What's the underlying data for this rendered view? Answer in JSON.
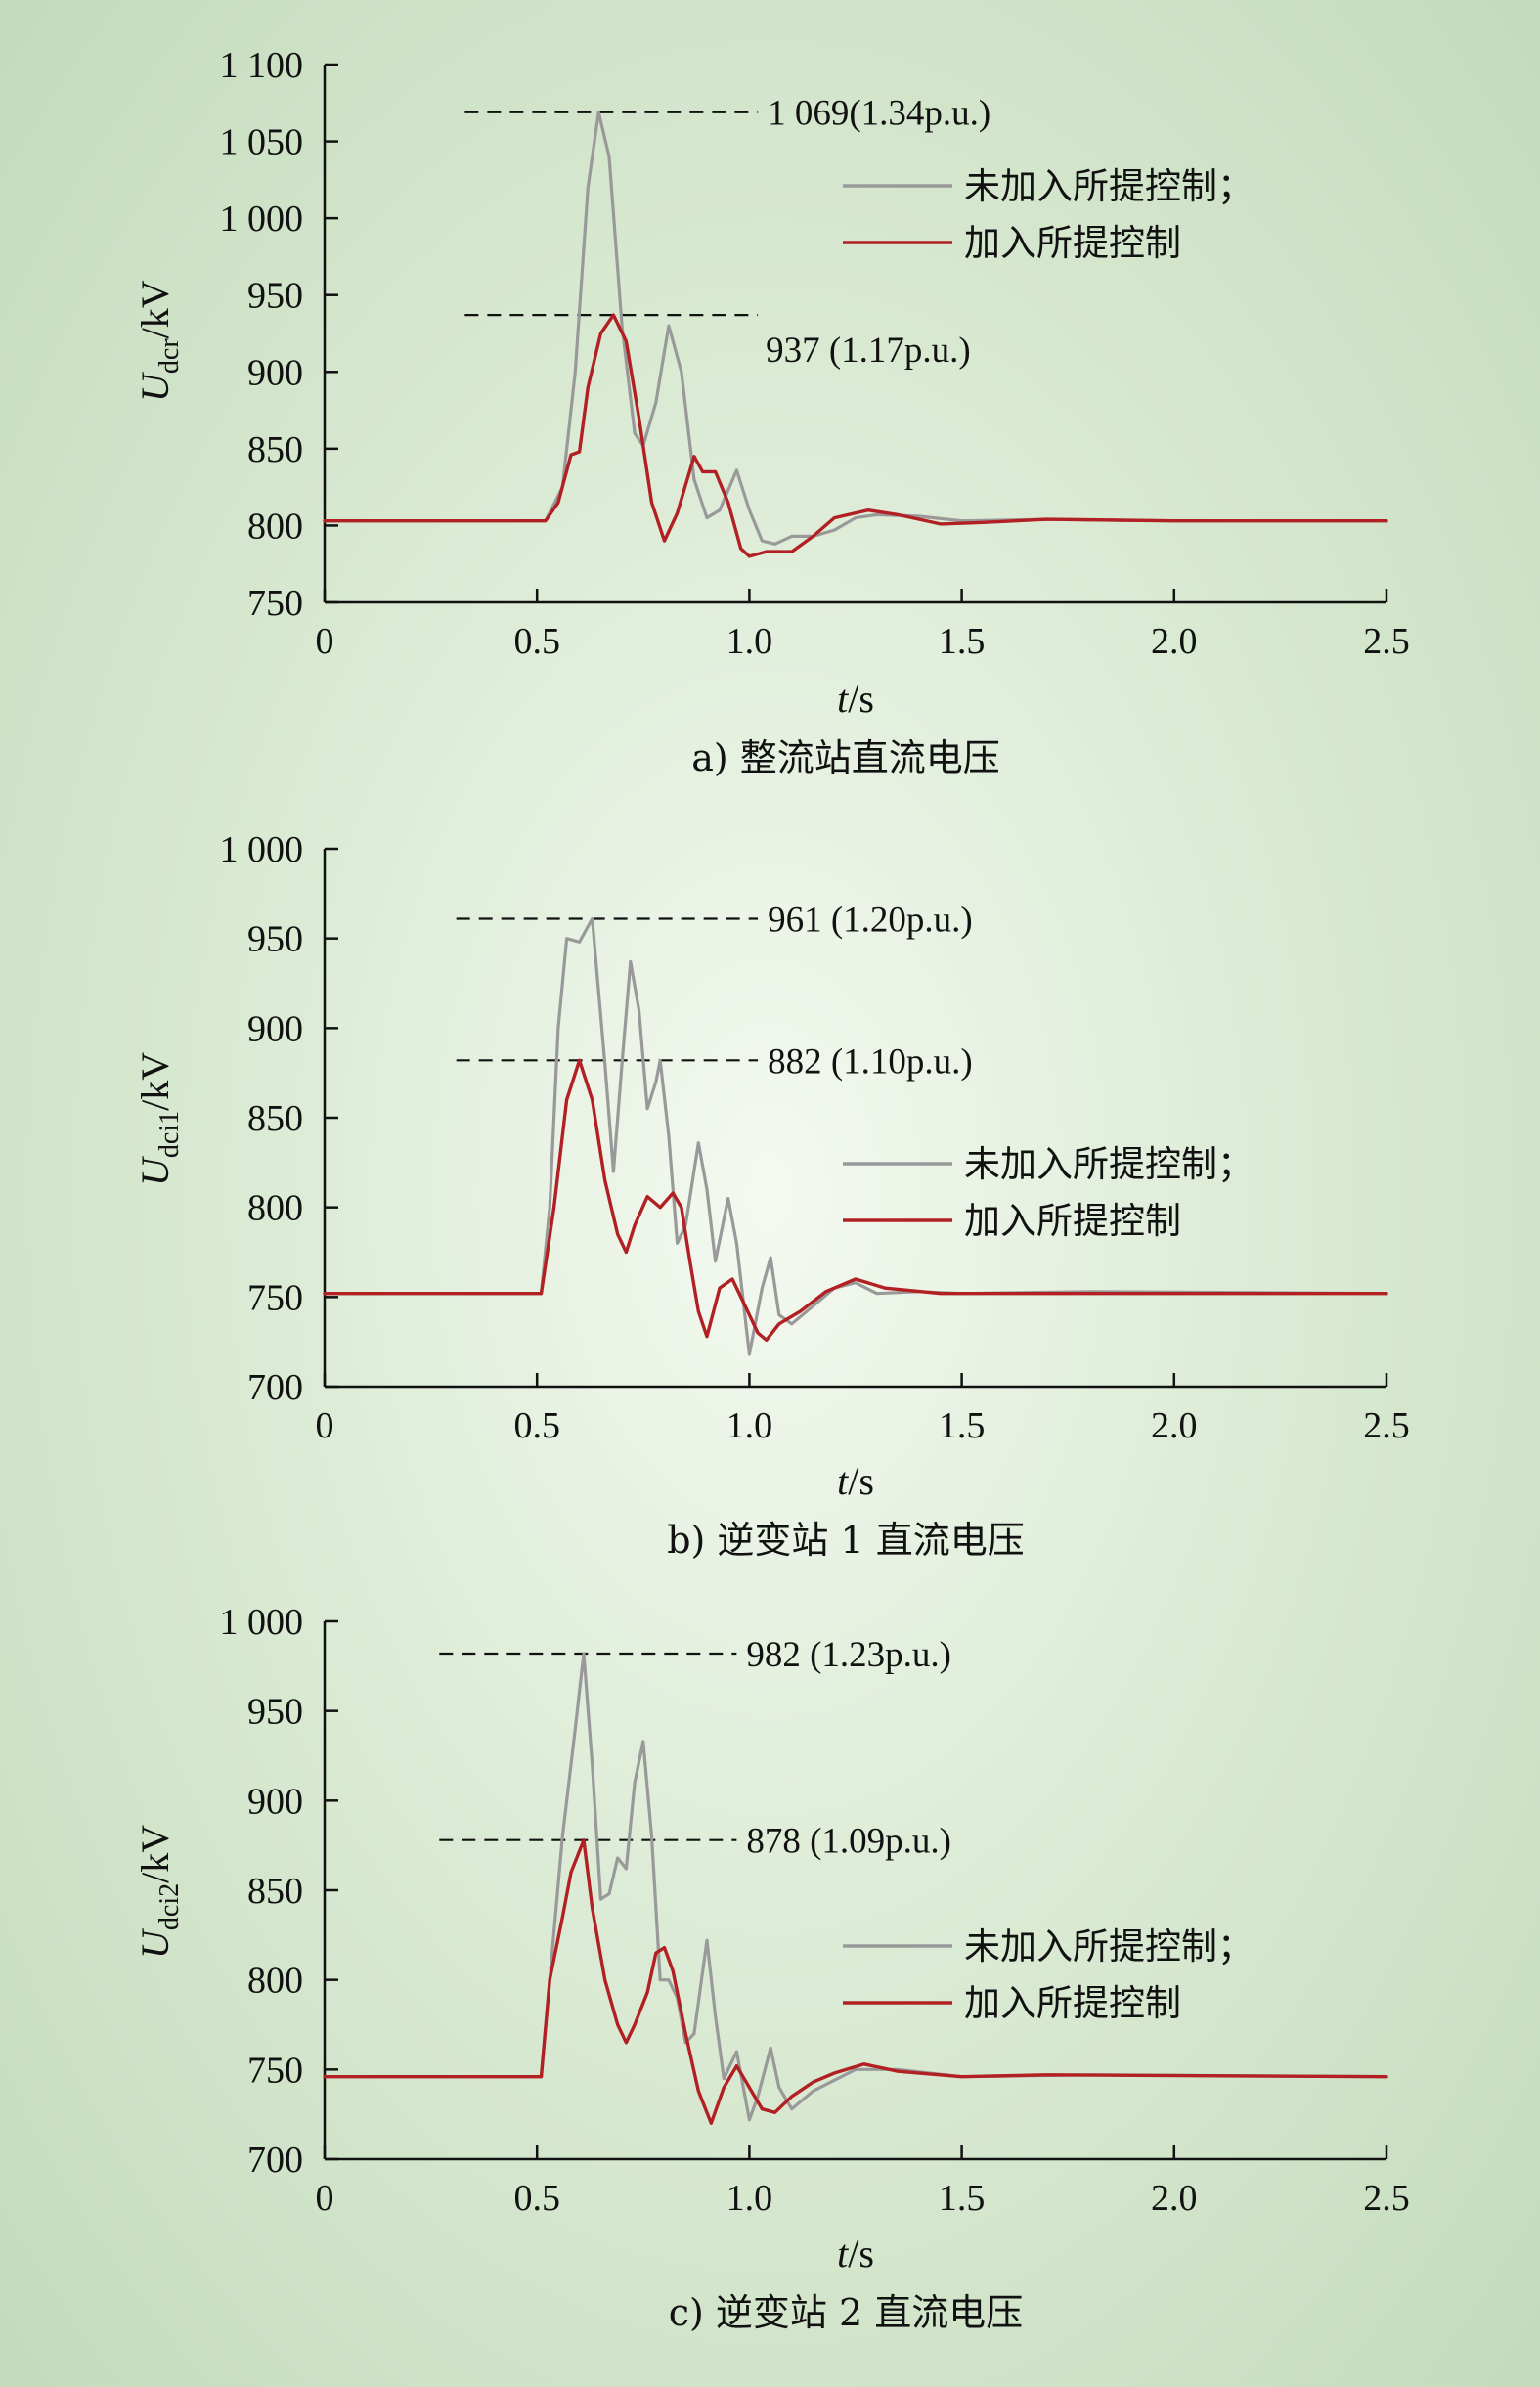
{
  "chart_data": [
    {
      "type": "line",
      "caption": "a) 整流站直流电压",
      "ylabel_main": "U",
      "ylabel_sub": "dcr",
      "ylabel_unit": "/kV",
      "xlabel_main": "t",
      "xlabel_unit": "/s",
      "xlim": [
        0,
        2.5
      ],
      "ylim": [
        750,
        1100
      ],
      "xticks": [
        0,
        0.5,
        1.0,
        1.5,
        2.0,
        2.5
      ],
      "xtick_labels": [
        "0",
        "0.5",
        "1.0",
        "1.5",
        "2.0",
        "2.5"
      ],
      "yticks": [
        750,
        800,
        850,
        900,
        950,
        1000,
        1050,
        1100
      ],
      "ytick_labels": [
        "750",
        "800",
        "850",
        "900",
        "950",
        "1 000",
        "1 050",
        "1 100"
      ],
      "annotations": [
        {
          "text": "1 069(1.34p.u.)",
          "y": 1069,
          "x_start": 0.33,
          "x_end": 1.02,
          "label_pos": "right"
        },
        {
          "text": "937 (1.17p.u.)",
          "y": 937,
          "x_start": 0.33,
          "x_end": 1.02,
          "label_pos": "below-right"
        }
      ],
      "legend": [
        "未加入所提控制；",
        "加入所提控制"
      ],
      "series": [
        {
          "name": "未加入所提控制；",
          "color": "#999999",
          "points": [
            [
              0,
              803
            ],
            [
              0.52,
              803
            ],
            [
              0.56,
              825
            ],
            [
              0.59,
              900
            ],
            [
              0.62,
              1020
            ],
            [
              0.645,
              1069
            ],
            [
              0.67,
              1040
            ],
            [
              0.7,
              930
            ],
            [
              0.73,
              860
            ],
            [
              0.75,
              852
            ],
            [
              0.78,
              880
            ],
            [
              0.81,
              930
            ],
            [
              0.84,
              900
            ],
            [
              0.87,
              830
            ],
            [
              0.9,
              805
            ],
            [
              0.93,
              810
            ],
            [
              0.97,
              836
            ],
            [
              1.0,
              810
            ],
            [
              1.03,
              790
            ],
            [
              1.06,
              788
            ],
            [
              1.1,
              793
            ],
            [
              1.15,
              793
            ],
            [
              1.2,
              797
            ],
            [
              1.25,
              805
            ],
            [
              1.3,
              807
            ],
            [
              1.4,
              806
            ],
            [
              1.5,
              803
            ],
            [
              1.7,
              804
            ],
            [
              2.0,
              803
            ],
            [
              2.5,
              803
            ]
          ]
        },
        {
          "name": "加入所提控制",
          "color": "#b22024",
          "points": [
            [
              0,
              803
            ],
            [
              0.52,
              803
            ],
            [
              0.55,
              815
            ],
            [
              0.58,
              846
            ],
            [
              0.6,
              848
            ],
            [
              0.62,
              890
            ],
            [
              0.65,
              925
            ],
            [
              0.68,
              937
            ],
            [
              0.71,
              920
            ],
            [
              0.74,
              870
            ],
            [
              0.77,
              815
            ],
            [
              0.8,
              790
            ],
            [
              0.83,
              808
            ],
            [
              0.87,
              845
            ],
            [
              0.89,
              835
            ],
            [
              0.92,
              835
            ],
            [
              0.95,
              815
            ],
            [
              0.98,
              785
            ],
            [
              1.0,
              780
            ],
            [
              1.04,
              783
            ],
            [
              1.1,
              783
            ],
            [
              1.15,
              793
            ],
            [
              1.2,
              805
            ],
            [
              1.28,
              810
            ],
            [
              1.35,
              807
            ],
            [
              1.45,
              801
            ],
            [
              1.55,
              802
            ],
            [
              1.7,
              804
            ],
            [
              2.0,
              803
            ],
            [
              2.5,
              803
            ]
          ]
        }
      ]
    },
    {
      "type": "line",
      "caption": "b) 逆变站 1 直流电压",
      "ylabel_main": "U",
      "ylabel_sub": "dci1",
      "ylabel_unit": "/kV",
      "xlabel_main": "t",
      "xlabel_unit": "/s",
      "xlim": [
        0,
        2.5
      ],
      "ylim": [
        700,
        1000
      ],
      "xticks": [
        0,
        0.5,
        1.0,
        1.5,
        2.0,
        2.5
      ],
      "xtick_labels": [
        "0",
        "0.5",
        "1.0",
        "1.5",
        "2.0",
        "2.5"
      ],
      "yticks": [
        700,
        750,
        800,
        850,
        900,
        950,
        1000
      ],
      "ytick_labels": [
        "700",
        "750",
        "800",
        "850",
        "900",
        "950",
        "1 000"
      ],
      "annotations": [
        {
          "text": "961 (1.20p.u.)",
          "y": 961,
          "x_start": 0.31,
          "x_end": 1.02,
          "label_pos": "right"
        },
        {
          "text": "882 (1.10p.u.)",
          "y": 882,
          "x_start": 0.31,
          "x_end": 1.02,
          "label_pos": "right"
        }
      ],
      "legend": [
        "未加入所提控制；",
        "加入所提控制"
      ],
      "series": [
        {
          "name": "未加入所提控制；",
          "color": "#999999",
          "points": [
            [
              0,
              752
            ],
            [
              0.51,
              752
            ],
            [
              0.53,
              800
            ],
            [
              0.55,
              900
            ],
            [
              0.57,
              950
            ],
            [
              0.6,
              948
            ],
            [
              0.63,
              961
            ],
            [
              0.66,
              880
            ],
            [
              0.68,
              820
            ],
            [
              0.7,
              880
            ],
            [
              0.72,
              937
            ],
            [
              0.74,
              910
            ],
            [
              0.76,
              855
            ],
            [
              0.78,
              870
            ],
            [
              0.79,
              882
            ],
            [
              0.81,
              840
            ],
            [
              0.83,
              780
            ],
            [
              0.85,
              790
            ],
            [
              0.88,
              836
            ],
            [
              0.9,
              810
            ],
            [
              0.92,
              770
            ],
            [
              0.95,
              805
            ],
            [
              0.97,
              780
            ],
            [
              1.0,
              718
            ],
            [
              1.03,
              755
            ],
            [
              1.05,
              772
            ],
            [
              1.07,
              740
            ],
            [
              1.1,
              735
            ],
            [
              1.15,
              745
            ],
            [
              1.2,
              755
            ],
            [
              1.25,
              758
            ],
            [
              1.3,
              752
            ],
            [
              1.4,
              753
            ],
            [
              1.5,
              752
            ],
            [
              1.8,
              753
            ],
            [
              2.5,
              752
            ]
          ]
        },
        {
          "name": "加入所提控制",
          "color": "#b22024",
          "points": [
            [
              0,
              752
            ],
            [
              0.51,
              752
            ],
            [
              0.54,
              800
            ],
            [
              0.57,
              860
            ],
            [
              0.6,
              882
            ],
            [
              0.63,
              860
            ],
            [
              0.66,
              815
            ],
            [
              0.69,
              785
            ],
            [
              0.71,
              775
            ],
            [
              0.73,
              790
            ],
            [
              0.76,
              806
            ],
            [
              0.79,
              800
            ],
            [
              0.82,
              808
            ],
            [
              0.84,
              800
            ],
            [
              0.86,
              770
            ],
            [
              0.88,
              742
            ],
            [
              0.9,
              728
            ],
            [
              0.93,
              755
            ],
            [
              0.96,
              760
            ],
            [
              0.99,
              745
            ],
            [
              1.02,
              730
            ],
            [
              1.04,
              726
            ],
            [
              1.07,
              735
            ],
            [
              1.12,
              742
            ],
            [
              1.18,
              753
            ],
            [
              1.25,
              760
            ],
            [
              1.32,
              755
            ],
            [
              1.45,
              752
            ],
            [
              1.6,
              752
            ],
            [
              1.8,
              752
            ],
            [
              2.5,
              752
            ]
          ]
        }
      ]
    },
    {
      "type": "line",
      "caption": "c) 逆变站 2 直流电压",
      "ylabel_main": "U",
      "ylabel_sub": "dci2",
      "ylabel_unit": "/kV",
      "xlabel_main": "t",
      "xlabel_unit": "/s",
      "xlim": [
        0,
        2.5
      ],
      "ylim": [
        700,
        1000
      ],
      "xticks": [
        0,
        0.5,
        1.0,
        1.5,
        2.0,
        2.5
      ],
      "xtick_labels": [
        "0",
        "0.5",
        "1.0",
        "1.5",
        "2.0",
        "2.5"
      ],
      "yticks": [
        700,
        750,
        800,
        850,
        900,
        950,
        1000
      ],
      "ytick_labels": [
        "700",
        "750",
        "800",
        "850",
        "900",
        "950",
        "1 000"
      ],
      "annotations": [
        {
          "text": "982 (1.23p.u.)",
          "y": 982,
          "x_start": 0.27,
          "x_end": 0.97,
          "label_pos": "right"
        },
        {
          "text": "878 (1.09p.u.)",
          "y": 878,
          "x_start": 0.27,
          "x_end": 0.97,
          "label_pos": "right"
        }
      ],
      "legend": [
        "未加入所提控制；",
        "加入所提控制"
      ],
      "series": [
        {
          "name": "未加入所提控制；",
          "color": "#999999",
          "points": [
            [
              0,
              746
            ],
            [
              0.51,
              746
            ],
            [
              0.53,
              800
            ],
            [
              0.56,
              880
            ],
            [
              0.59,
              940
            ],
            [
              0.61,
              982
            ],
            [
              0.63,
              920
            ],
            [
              0.65,
              845
            ],
            [
              0.67,
              848
            ],
            [
              0.69,
              868
            ],
            [
              0.71,
              862
            ],
            [
              0.73,
              910
            ],
            [
              0.75,
              933
            ],
            [
              0.77,
              880
            ],
            [
              0.79,
              800
            ],
            [
              0.81,
              800
            ],
            [
              0.83,
              790
            ],
            [
              0.85,
              765
            ],
            [
              0.87,
              770
            ],
            [
              0.9,
              822
            ],
            [
              0.92,
              780
            ],
            [
              0.94,
              745
            ],
            [
              0.97,
              760
            ],
            [
              1.0,
              722
            ],
            [
              1.02,
              735
            ],
            [
              1.05,
              762
            ],
            [
              1.07,
              740
            ],
            [
              1.1,
              728
            ],
            [
              1.15,
              738
            ],
            [
              1.25,
              750
            ],
            [
              1.35,
              750
            ],
            [
              1.5,
              746
            ],
            [
              1.8,
              747
            ],
            [
              2.5,
              746
            ]
          ]
        },
        {
          "name": "加入所提控制",
          "color": "#b22024",
          "points": [
            [
              0,
              746
            ],
            [
              0.51,
              746
            ],
            [
              0.53,
              800
            ],
            [
              0.56,
              835
            ],
            [
              0.58,
              860
            ],
            [
              0.61,
              878
            ],
            [
              0.63,
              840
            ],
            [
              0.66,
              800
            ],
            [
              0.69,
              775
            ],
            [
              0.71,
              765
            ],
            [
              0.73,
              775
            ],
            [
              0.76,
              793
            ],
            [
              0.78,
              815
            ],
            [
              0.8,
              818
            ],
            [
              0.82,
              805
            ],
            [
              0.85,
              770
            ],
            [
              0.88,
              738
            ],
            [
              0.91,
              720
            ],
            [
              0.94,
              740
            ],
            [
              0.97,
              752
            ],
            [
              1.0,
              740
            ],
            [
              1.03,
              728
            ],
            [
              1.06,
              726
            ],
            [
              1.1,
              735
            ],
            [
              1.15,
              743
            ],
            [
              1.2,
              748
            ],
            [
              1.27,
              753
            ],
            [
              1.35,
              749
            ],
            [
              1.5,
              746
            ],
            [
              1.7,
              747
            ],
            [
              2.5,
              746
            ]
          ]
        }
      ]
    }
  ]
}
